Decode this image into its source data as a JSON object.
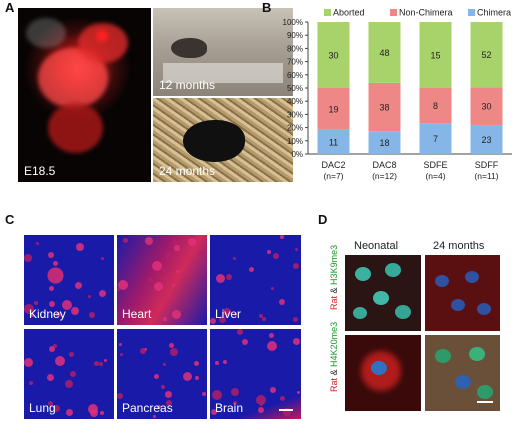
{
  "panels": {
    "a": {
      "letter": "A",
      "labels": {
        "embryo": "E18.5",
        "top": "12 months",
        "bottom": "24 months"
      }
    },
    "b": {
      "letter": "B"
    },
    "c": {
      "letter": "C",
      "tiles": [
        "Kidney",
        "Heart",
        "Liver",
        "Lung",
        "Pancreas",
        "Brain"
      ]
    },
    "d": {
      "letter": "D",
      "col_headers": [
        "Neonatal",
        "24 months"
      ],
      "row1": {
        "rat": "Rat",
        "amp": "&",
        "marker": "H3K9me3"
      },
      "row2": {
        "rat": "Rat",
        "amp": "&",
        "marker": "H4K20me3"
      }
    }
  },
  "colors": {
    "aborted": "#a8d26a",
    "non_chimera": "#ee8886",
    "chimera": "#86b6e8"
  },
  "chart_data": {
    "type": "bar",
    "stacked": true,
    "percent": true,
    "categories": [
      "DAC2",
      "DAC8",
      "SDFE",
      "SDFF"
    ],
    "category_sublabels": [
      "(n=7)",
      "(n=12)",
      "(n=4)",
      "(n=11)"
    ],
    "series": [
      {
        "name": "Chimera",
        "values": [
          11,
          18,
          7,
          23
        ]
      },
      {
        "name": "Non-Chimera",
        "values": [
          19,
          38,
          8,
          30
        ]
      },
      {
        "name": "Aborted",
        "values": [
          30,
          48,
          15,
          52
        ]
      }
    ],
    "ylim": [
      0,
      100
    ],
    "yticks": [
      "0%",
      "10%",
      "20%",
      "30%",
      "40%",
      "50%",
      "60%",
      "70%",
      "80%",
      "90%",
      "100%"
    ],
    "legend": "top",
    "grid": false
  }
}
